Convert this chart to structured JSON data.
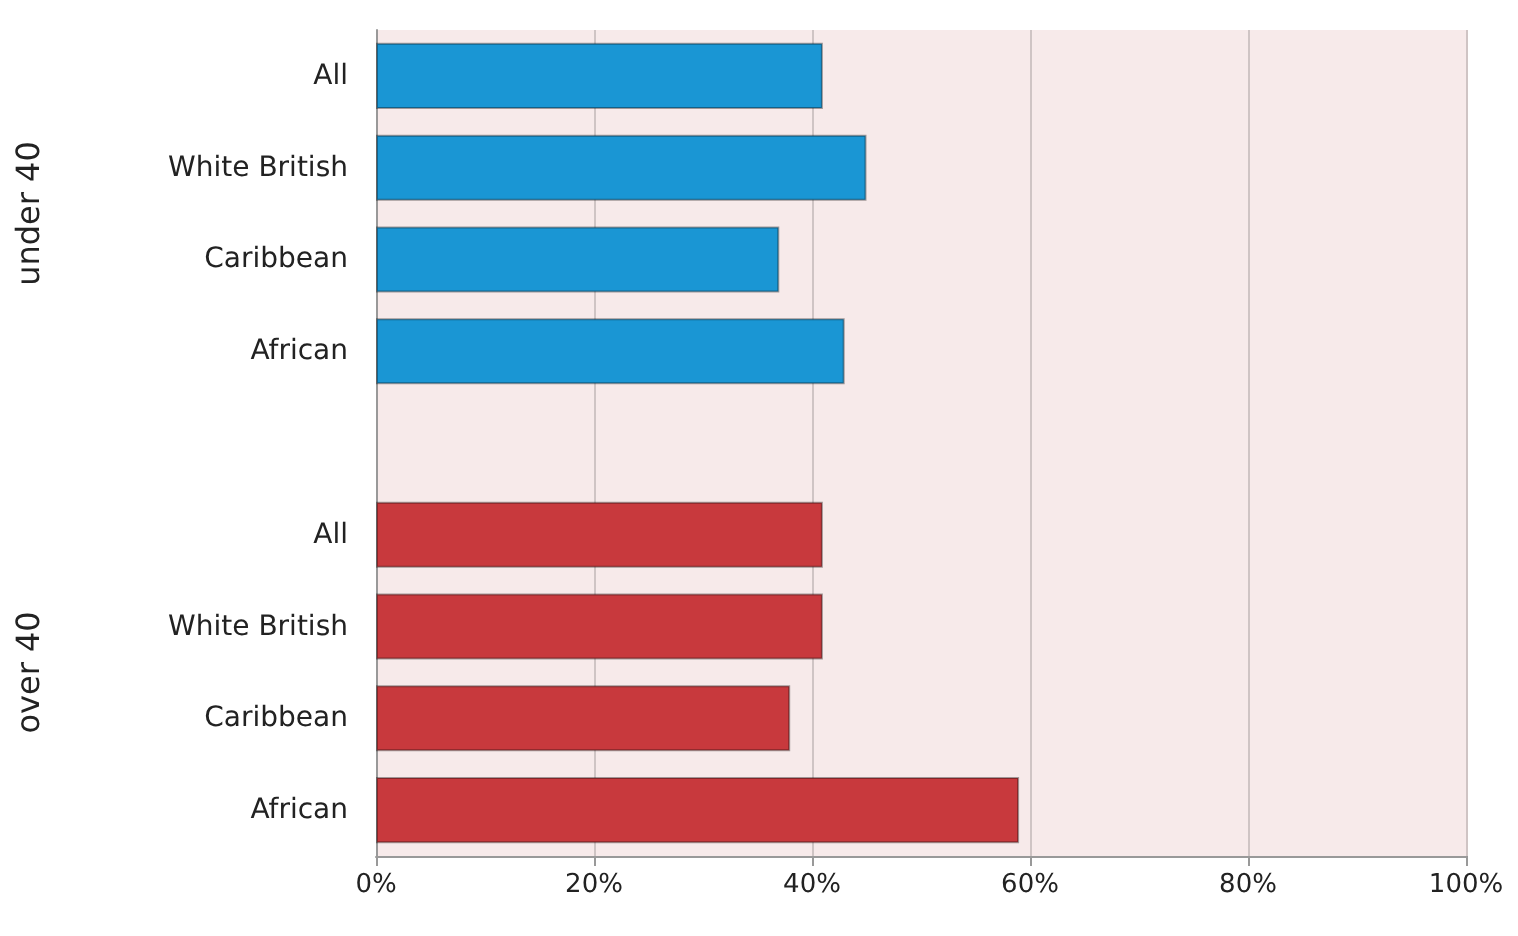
{
  "chart_data": {
    "type": "bar",
    "orientation": "horizontal",
    "categories": [
      "All",
      "White British",
      "Caribbean",
      "African",
      null,
      "All",
      "White British",
      "Caribbean",
      "African"
    ],
    "values": [
      41,
      45,
      37,
      43,
      null,
      41,
      41,
      38,
      59
    ],
    "colors": [
      "#1a96d4",
      "#1a96d4",
      "#1a96d4",
      "#1a96d4",
      null,
      "#c8393d",
      "#c8393d",
      "#c8393d",
      "#c8393d"
    ],
    "xlim": [
      0,
      100
    ],
    "xticks": [
      {
        "value": 0,
        "label": "0%"
      },
      {
        "value": 20,
        "label": "20%"
      },
      {
        "value": 40,
        "label": "40%"
      },
      {
        "value": 60,
        "label": "60%"
      },
      {
        "value": 80,
        "label": "80%"
      },
      {
        "value": 100,
        "label": "100%"
      }
    ],
    "annotations": [
      "under 40",
      "over 40"
    ],
    "grid": "x"
  }
}
